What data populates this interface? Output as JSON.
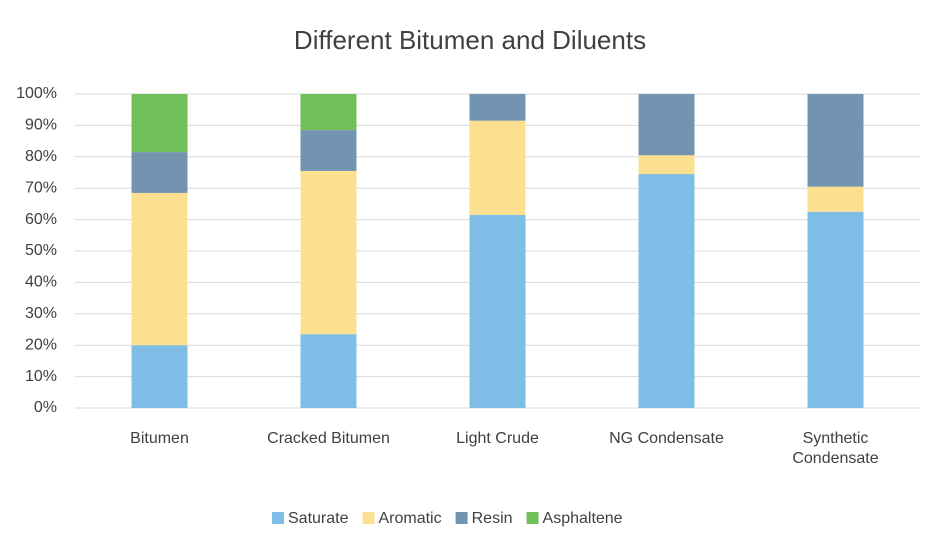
{
  "chart_data": {
    "type": "stacked-bar",
    "title": "Different Bitumen and Diluents",
    "categories": [
      "Bitumen",
      "Cracked Bitumen",
      "Light Crude",
      "NG Condensate",
      "Synthetic Condensate"
    ],
    "series": [
      {
        "name": "Saturate",
        "color": "#7dbde6",
        "values": [
          20,
          23.5,
          61.5,
          74.5,
          62.5
        ]
      },
      {
        "name": "Aromatic",
        "color": "#fde08f",
        "values": [
          48.5,
          52,
          30,
          6,
          8
        ]
      },
      {
        "name": "Resin",
        "color": "#7394b0",
        "values": [
          13,
          13,
          8.5,
          19.5,
          29.5
        ]
      },
      {
        "name": "Asphaltene",
        "color": "#72c05a",
        "values": [
          18.5,
          11.5,
          0,
          0,
          0
        ]
      }
    ],
    "ylim": [
      0,
      100
    ],
    "yticks": [
      {
        "value": 0,
        "label": "0%"
      },
      {
        "value": 10,
        "label": "10%"
      },
      {
        "value": 20,
        "label": "20%"
      },
      {
        "value": 30,
        "label": "30%"
      },
      {
        "value": 40,
        "label": "40%"
      },
      {
        "value": 50,
        "label": "50%"
      },
      {
        "value": 60,
        "label": "60%"
      },
      {
        "value": 70,
        "label": "70%"
      },
      {
        "value": 80,
        "label": "80%"
      },
      {
        "value": 90,
        "label": "90%"
      },
      {
        "value": 100,
        "label": "100%"
      }
    ],
    "grid": true,
    "legend": "bottom"
  }
}
